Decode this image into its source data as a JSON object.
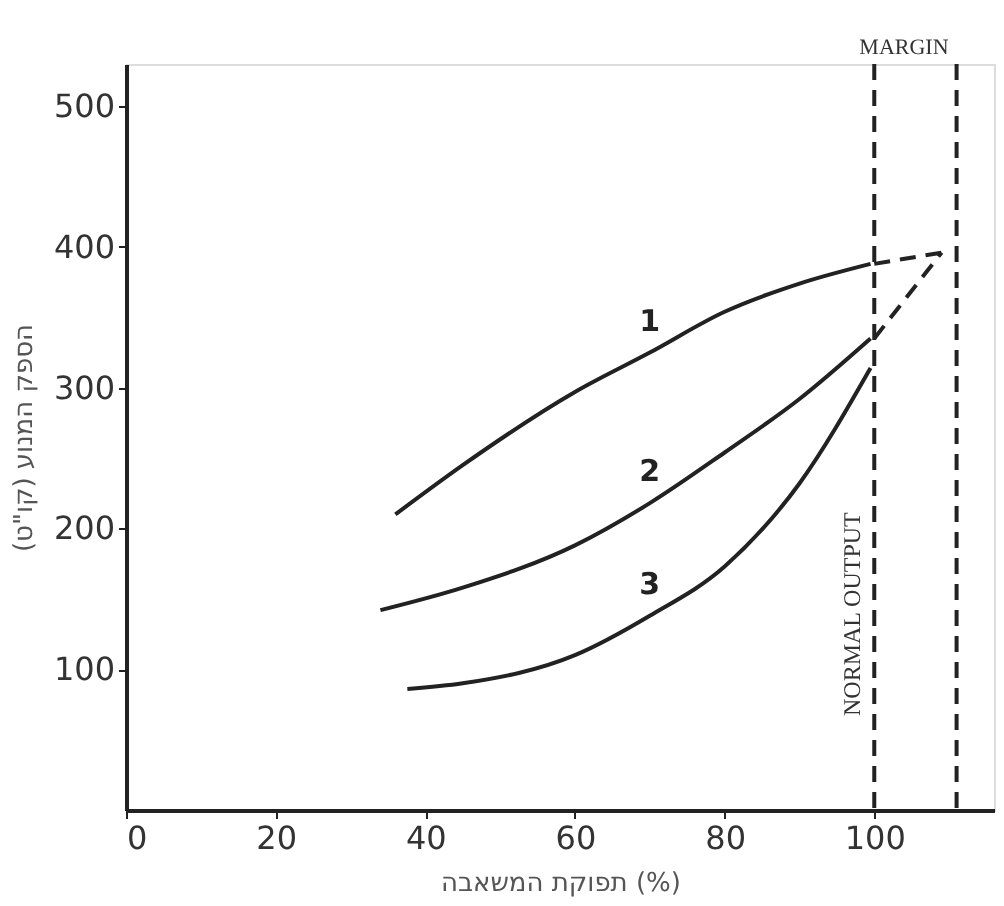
{
  "chart_data": {
    "type": "line",
    "xlabel": "תפוקת המשאבה (%)",
    "ylabel": "הספק המנוע (קו\"ט)",
    "xlim": [
      0,
      116
    ],
    "ylim": [
      0,
      530
    ],
    "xticks": [
      0,
      20,
      40,
      60,
      80,
      100
    ],
    "yticks": [
      100,
      200,
      300,
      400,
      500
    ],
    "grid": false,
    "marker": "none",
    "series": [
      {
        "name": "1",
        "color": "#222222",
        "line_style": "solid",
        "x": [
          36,
          45,
          60,
          70,
          80,
          90,
          99.5
        ],
        "values": [
          210,
          245,
          297,
          325,
          354,
          374,
          388
        ]
      },
      {
        "name": "2",
        "color": "#222222",
        "line_style": "solid",
        "x": [
          34,
          45,
          60,
          70,
          80,
          90,
          99.5
        ],
        "values": [
          142,
          158,
          188,
          218,
          254,
          292,
          335
        ]
      },
      {
        "name": "3",
        "color": "#222222",
        "line_style": "solid",
        "x": [
          37.6,
          45,
          60,
          70,
          80,
          90,
          99.5
        ],
        "values": [
          86,
          90,
          110,
          138,
          173,
          232,
          314
        ]
      },
      {
        "color": "#222222",
        "line_style": "dashed",
        "x": [
          100,
          109
        ],
        "values": [
          388,
          396
        ]
      },
      {
        "color": "#222222",
        "line_style": "dashed",
        "x": [
          100,
          109
        ],
        "values": [
          335,
          396
        ]
      }
    ],
    "ref_lines": [
      {
        "axis": "x",
        "value": 100,
        "label": "NORMAL OUTPUT",
        "line_style": "dashed"
      },
      {
        "axis": "x",
        "value": 111,
        "label": "MARGIN",
        "line_style": "dashed"
      }
    ]
  }
}
